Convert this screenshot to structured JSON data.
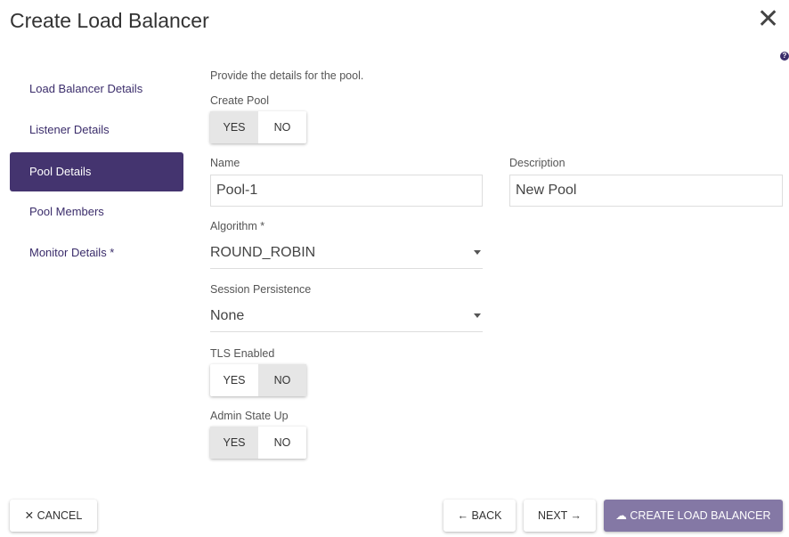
{
  "title": "Create Load Balancer",
  "sidebar": {
    "items": [
      {
        "label": "Load Balancer Details"
      },
      {
        "label": "Listener Details"
      },
      {
        "label": "Pool Details",
        "active": true
      },
      {
        "label": "Pool Members"
      },
      {
        "label": "Monitor Details *"
      }
    ]
  },
  "form": {
    "intro": "Provide the details for the pool.",
    "create_pool": {
      "label": "Create Pool",
      "yes": "YES",
      "no": "NO",
      "value": "YES"
    },
    "name": {
      "label": "Name",
      "value": "Pool-1"
    },
    "description": {
      "label": "Description",
      "value": "New Pool"
    },
    "algorithm": {
      "label": "Algorithm *",
      "value": "ROUND_ROBIN"
    },
    "session": {
      "label": "Session Persistence",
      "value": "None"
    },
    "tls": {
      "label": "TLS Enabled",
      "yes": "YES",
      "no": "NO",
      "value": "NO"
    },
    "admin": {
      "label": "Admin State Up",
      "yes": "YES",
      "no": "NO",
      "value": "YES"
    }
  },
  "footer": {
    "cancel": "✕ CANCEL",
    "back": "← BACK",
    "next": "NEXT →",
    "create": "CREATE LOAD BALANCER"
  },
  "colors": {
    "accent": "#44346f",
    "primary_button": "#8478a5"
  }
}
